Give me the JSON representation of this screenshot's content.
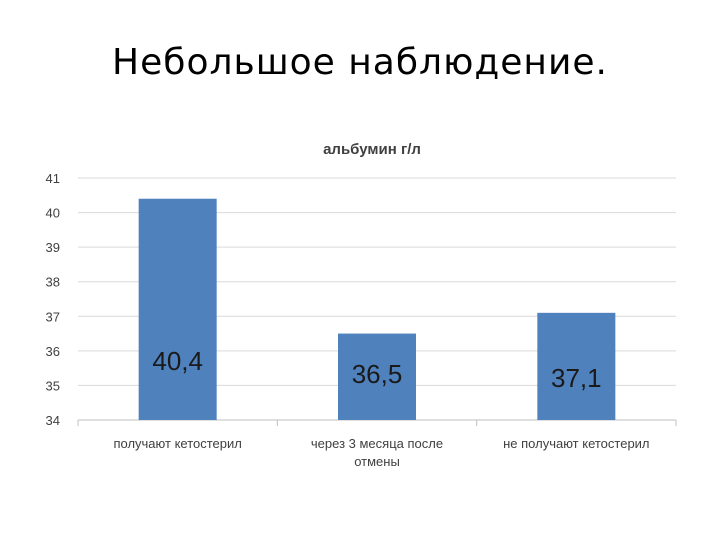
{
  "slide": {
    "title": "Небольшое наблюдение."
  },
  "chart_data": {
    "type": "bar",
    "title": "альбумин г/л",
    "categories": [
      [
        "получают кетостерил"
      ],
      [
        "через 3 месяца после",
        "отмены"
      ],
      [
        "не получают кетостерил"
      ]
    ],
    "values": [
      40.4,
      36.5,
      37.1
    ],
    "data_labels": [
      "40,4",
      "36,5",
      "37,1"
    ],
    "ylim": [
      34,
      41
    ],
    "yticks": [
      34,
      35,
      36,
      37,
      38,
      39,
      40,
      41
    ],
    "grid": true,
    "legend": "none",
    "bar_color": "#4f81bd"
  }
}
